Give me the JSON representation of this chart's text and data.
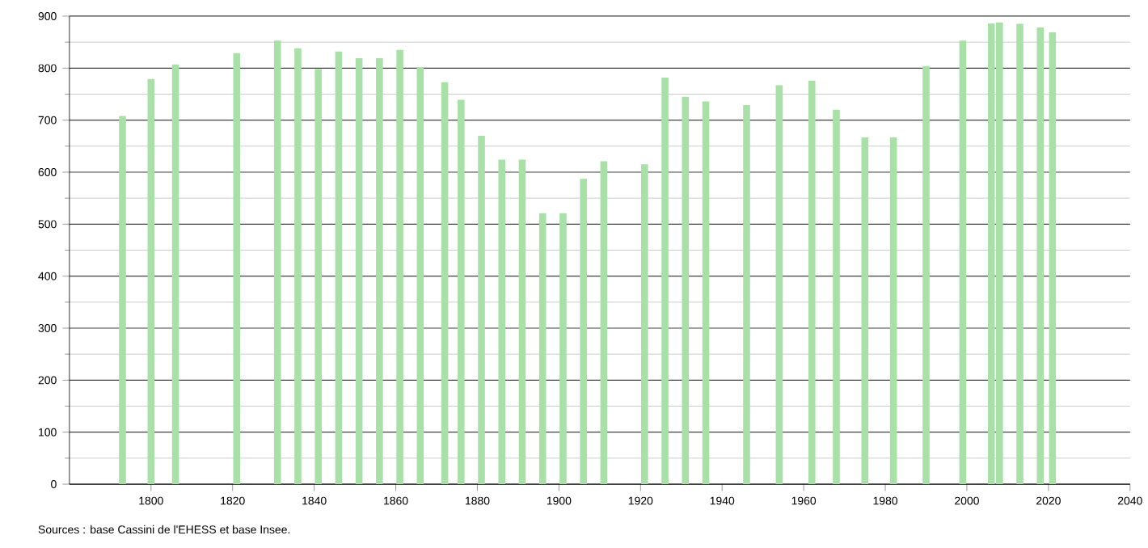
{
  "chart_data": {
    "type": "bar",
    "x": [
      1793,
      1800,
      1806,
      1821,
      1831,
      1836,
      1841,
      1846,
      1851,
      1856,
      1861,
      1866,
      1872,
      1876,
      1881,
      1886,
      1891,
      1896,
      1901,
      1906,
      1911,
      1921,
      1926,
      1931,
      1936,
      1946,
      1954,
      1962,
      1968,
      1975,
      1982,
      1990,
      1999,
      2006,
      2008,
      2013,
      2018,
      2021
    ],
    "values": [
      708,
      779,
      807,
      829,
      853,
      838,
      798,
      832,
      819,
      819,
      835,
      801,
      773,
      739,
      670,
      624,
      624,
      521,
      521,
      587,
      621,
      615,
      782,
      745,
      736,
      729,
      767,
      776,
      720,
      667,
      667,
      804,
      853,
      886,
      888,
      885,
      878,
      869
    ],
    "color": "#a8e0a8",
    "xlim": [
      1780,
      2040
    ],
    "xticks": [
      1800,
      1820,
      1840,
      1860,
      1880,
      1900,
      1920,
      1940,
      1960,
      1980,
      2000,
      2020,
      2040
    ],
    "ylim": [
      0,
      900
    ],
    "yticks": [
      0,
      100,
      200,
      300,
      400,
      500,
      600,
      700,
      800,
      900
    ],
    "grid": "y",
    "annotations": [
      "Sources : base Cassini de l'EHESS et base Insee."
    ]
  }
}
